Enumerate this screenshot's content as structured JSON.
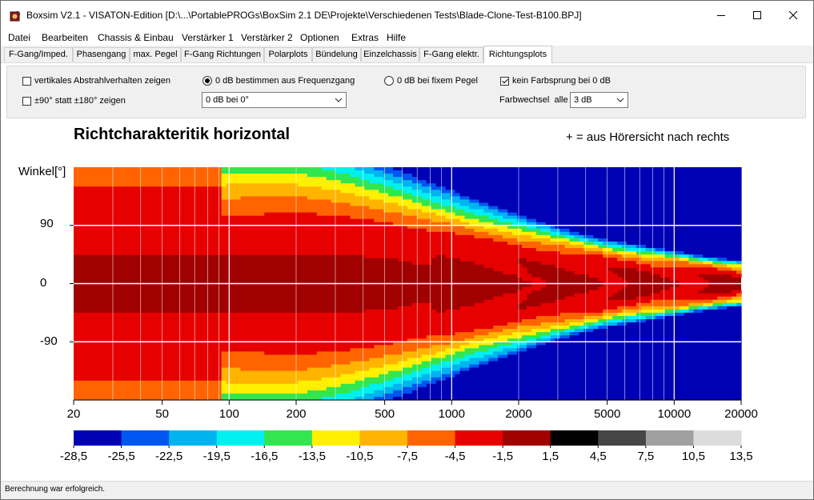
{
  "window": {
    "title": "Boxsim V2.1 - VISATON-Edition [D:\\...\\PortablePROGs\\BoxSim 2.1 DE\\Projekte\\Verschiedenen Tests\\Blade-Clone-Test-B100.BPJ]",
    "minimize": "minimize-icon",
    "maximize": "maximize-icon",
    "close": "close-icon"
  },
  "menu": [
    "Datei",
    "Bearbeiten",
    "Chassis & Einbau",
    "Verstärker 1",
    "Verstärker 2",
    "Optionen",
    "Extras",
    "Hilfe"
  ],
  "tabs": [
    "F-Gang/Imped.",
    "Phasengang",
    "max. Pegel",
    "F-Gang Richtungen",
    "Polarplots",
    "Bündelung",
    "Einzelchassis",
    "F-Gang elektr.",
    "Richtungsplots"
  ],
  "active_tab": "Richtungsplots",
  "options": {
    "vertical_label": "vertikales Abstrahlverhalten zeigen",
    "vertical_checked": false,
    "pm90_label": "±90° statt ±180° zeigen",
    "pm90_checked": false,
    "radio_freq_label": "0 dB bestimmen aus Frequenzgang",
    "radio_freq_selected": true,
    "radio_fixed_label": "0 dB bei fixem Pegel",
    "radio_fixed_selected": false,
    "ref_dropdown_value": "0 dB bei 0°",
    "no_colorjump_label": "kein Farbsprung bei 0 dB",
    "no_colorjump_checked": true,
    "colorchange_label": "Farbwechsel",
    "colorchange_all": "alle",
    "colorchange_value": "3 dB"
  },
  "plot": {
    "title": "Richtcharakteritik horizontal",
    "note": "+ = aus Hörersicht nach rechts",
    "ylabel": "Winkel[°]",
    "yticks": [
      "90",
      "0",
      "-90"
    ],
    "xticks": [
      "20",
      "50",
      "100",
      "200",
      "500",
      "1000",
      "2000",
      "5000",
      "10000",
      "20000"
    ]
  },
  "chart_data": {
    "type": "heatmap",
    "title": "Richtcharakteritik horizontal",
    "ylabel": "Winkel[°]",
    "x_scale": "log",
    "xlim": [
      20,
      20000
    ],
    "ylim": [
      -180,
      180
    ],
    "x_ticks": [
      20,
      50,
      100,
      200,
      500,
      1000,
      2000,
      5000,
      10000,
      20000
    ],
    "y_ticks": [
      90,
      0,
      -90
    ],
    "grid": true,
    "color_scale": {
      "boundaries": [
        "-28,5",
        "-25,5",
        "-22,5",
        "-19,5",
        "-16,5",
        "-13,5",
        "-10,5",
        "-7,5",
        "-4,5",
        "-1,5",
        "1,5",
        "4,5",
        "7,5",
        "10,5",
        "13,5"
      ],
      "colors": [
        "#0000b4",
        "#0056f0",
        "#00b4f0",
        "#00f0f0",
        "#32e650",
        "#fff000",
        "#ffb400",
        "#ff6400",
        "#e60000",
        "#a00000",
        "#000000",
        "#464646",
        "#a0a0a0",
        "#dcdcdc"
      ]
    }
  },
  "status": "Berechnung war erfolgreich."
}
